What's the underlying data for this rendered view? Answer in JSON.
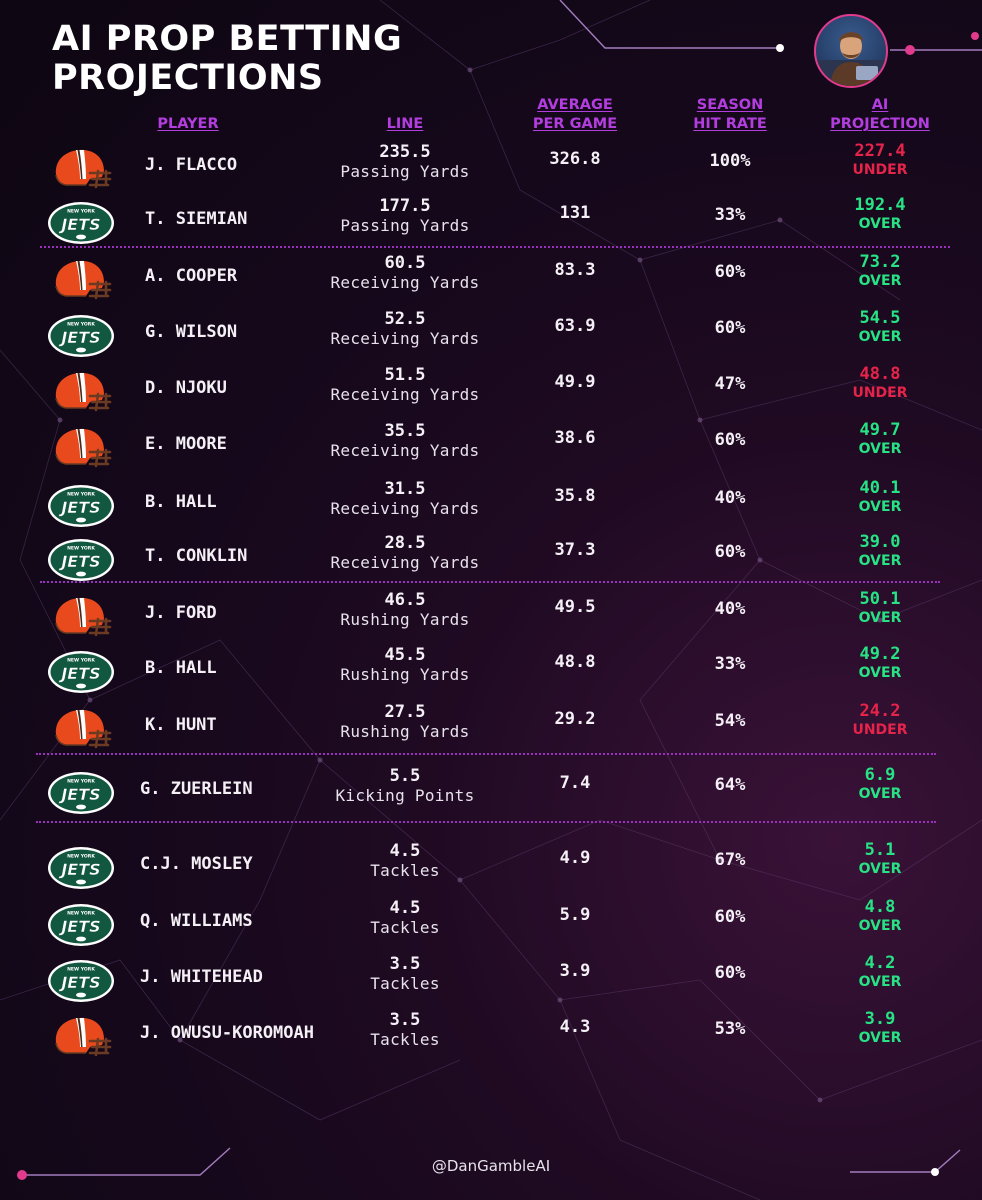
{
  "title_lines": [
    "AI PROP BETTING",
    "PROJECTIONS"
  ],
  "headers": {
    "player": [
      "PLAYER"
    ],
    "line": [
      "LINE"
    ],
    "avg": [
      "AVERAGE",
      "PER GAME"
    ],
    "hit": [
      "SEASON",
      "HIT RATE"
    ],
    "proj": [
      "AI",
      "PROJECTION"
    ]
  },
  "rows": [
    {
      "team": "browns",
      "player": "J. FLACCO",
      "line": "235.5",
      "stat": "Passing Yards",
      "avg": "326.8",
      "hit": "100%",
      "proj": "227.4",
      "dir": "UNDER"
    },
    {
      "team": "jets",
      "player": "T. SIEMIAN",
      "line": "177.5",
      "stat": "Passing Yards",
      "avg": "131",
      "hit": "33%",
      "proj": "192.4",
      "dir": "OVER"
    },
    {
      "team": "browns",
      "player": "A. COOPER",
      "line": "60.5",
      "stat": "Receiving Yards",
      "avg": "83.3",
      "hit": "60%",
      "proj": "73.2",
      "dir": "OVER"
    },
    {
      "team": "jets",
      "player": "G. WILSON",
      "line": "52.5",
      "stat": "Receiving Yards",
      "avg": "63.9",
      "hit": "60%",
      "proj": "54.5",
      "dir": "OVER"
    },
    {
      "team": "browns",
      "player": "D. NJOKU",
      "line": "51.5",
      "stat": "Receiving Yards",
      "avg": "49.9",
      "hit": "47%",
      "proj": "48.8",
      "dir": "UNDER"
    },
    {
      "team": "browns",
      "player": "E. MOORE",
      "line": "35.5",
      "stat": "Receiving Yards",
      "avg": "38.6",
      "hit": "60%",
      "proj": "49.7",
      "dir": "OVER"
    },
    {
      "team": "jets",
      "player": "B. HALL",
      "line": "31.5",
      "stat": "Receiving Yards",
      "avg": "35.8",
      "hit": "40%",
      "proj": "40.1",
      "dir": "OVER"
    },
    {
      "team": "jets",
      "player": "T. CONKLIN",
      "line": "28.5",
      "stat": "Receiving Yards",
      "avg": "37.3",
      "hit": "60%",
      "proj": "39.0",
      "dir": "OVER"
    },
    {
      "team": "browns",
      "player": "J. FORD",
      "line": "46.5",
      "stat": "Rushing Yards",
      "avg": "49.5",
      "hit": "40%",
      "proj": "50.1",
      "dir": "OVER"
    },
    {
      "team": "jets",
      "player": "B. HALL",
      "line": "45.5",
      "stat": "Rushing Yards",
      "avg": "48.8",
      "hit": "33%",
      "proj": "49.2",
      "dir": "OVER"
    },
    {
      "team": "browns",
      "player": "K. HUNT",
      "line": "27.5",
      "stat": "Rushing Yards",
      "avg": "29.2",
      "hit": "54%",
      "proj": "24.2",
      "dir": "UNDER"
    },
    {
      "team": "jets",
      "player": "G. ZUERLEIN",
      "line": "5.5",
      "stat": "Kicking Points",
      "avg": "7.4",
      "hit": "64%",
      "proj": "6.9",
      "dir": "OVER"
    },
    {
      "team": "jets",
      "player": "C.J. MOSLEY",
      "line": "4.5",
      "stat": "Tackles",
      "avg": "4.9",
      "hit": "67%",
      "proj": "5.1",
      "dir": "OVER"
    },
    {
      "team": "jets",
      "player": "Q. WILLIAMS",
      "line": "4.5",
      "stat": "Tackles",
      "avg": "5.9",
      "hit": "60%",
      "proj": "4.8",
      "dir": "OVER"
    },
    {
      "team": "jets",
      "player": "J. WHITEHEAD",
      "line": "3.5",
      "stat": "Tackles",
      "avg": "3.9",
      "hit": "60%",
      "proj": "4.2",
      "dir": "OVER"
    },
    {
      "team": "browns",
      "player": "J. OWUSU-KOROMOAH",
      "line": "3.5",
      "stat": "Tackles",
      "avg": "4.3",
      "hit": "53%",
      "proj": "3.9",
      "dir": "OVER"
    }
  ],
  "colors": {
    "under": "#e6234a",
    "over": "#27e384",
    "header": "#b33ddf",
    "accent": "#e23b8e"
  },
  "logo_text": {
    "jets_top": "NEW YORK",
    "jets_main": "JETS"
  },
  "footer_handle": "@DanGambleAI"
}
